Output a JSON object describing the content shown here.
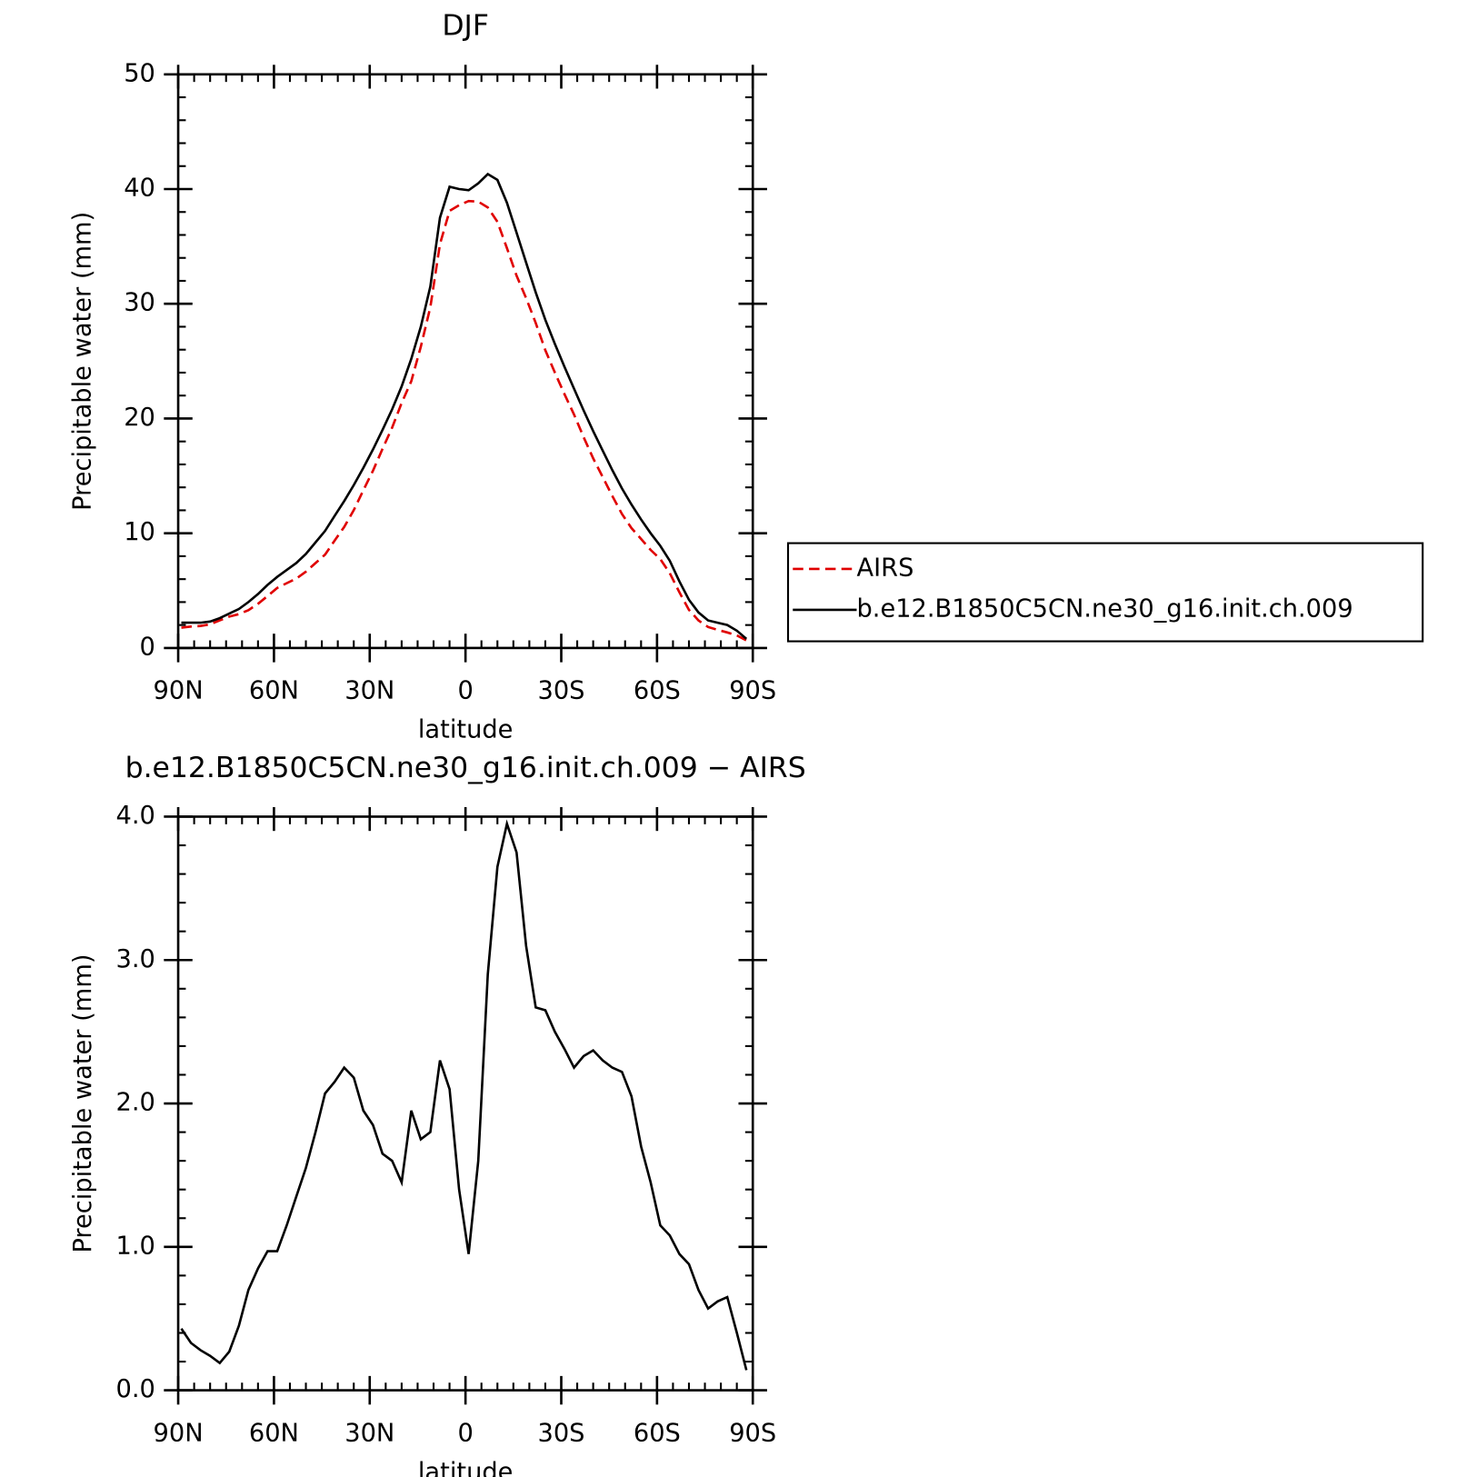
{
  "chart_data": [
    {
      "type": "line",
      "title": "DJF",
      "xlabel": "latitude",
      "ylabel": "Precipitable water (mm)",
      "x": [
        89,
        86,
        83,
        80,
        77,
        74,
        71,
        68,
        65,
        62,
        59,
        56,
        53,
        50,
        47,
        44,
        41,
        38,
        35,
        32,
        29,
        26,
        23,
        20,
        17,
        14,
        11,
        8,
        5,
        2,
        -1,
        -4,
        -7,
        -10,
        -13,
        -16,
        -19,
        -22,
        -25,
        -28,
        -31,
        -34,
        -37,
        -40,
        -43,
        -46,
        -49,
        -52,
        -55,
        -58,
        -61,
        -64,
        -67,
        -70,
        -73,
        -76,
        -79,
        -82,
        -85,
        -88
      ],
      "series": [
        {
          "name": "AIRS",
          "color": "#e00000",
          "dash": true,
          "values": [
            1.77,
            1.87,
            1.92,
            2.06,
            2.41,
            2.73,
            2.95,
            3.3,
            3.85,
            4.53,
            5.23,
            5.65,
            6.05,
            6.65,
            7.4,
            8.13,
            9.35,
            10.55,
            12.02,
            13.75,
            15.45,
            17.35,
            19.2,
            21.35,
            23.25,
            26.25,
            29.7,
            35.2,
            38.1,
            38.6,
            38.95,
            38.9,
            38.4,
            37.15,
            34.85,
            32.45,
            30.5,
            28.33,
            25.95,
            24.0,
            22.12,
            20.35,
            18.37,
            16.53,
            14.9,
            13.25,
            11.68,
            10.45,
            9.5,
            8.55,
            7.75,
            6.52,
            4.85,
            3.32,
            2.4,
            1.83,
            1.58,
            1.35,
            1.1,
            0.66
          ]
        },
        {
          "name": "b.e12.B1850C5CN.ne30_g16.init.ch.009",
          "color": "#000000",
          "dash": false,
          "values": [
            2.2,
            2.2,
            2.2,
            2.3,
            2.6,
            3.0,
            3.4,
            4.0,
            4.7,
            5.5,
            6.2,
            6.8,
            7.4,
            8.2,
            9.2,
            10.2,
            11.5,
            12.8,
            14.2,
            15.7,
            17.3,
            19.0,
            20.8,
            22.8,
            25.2,
            28.0,
            31.5,
            37.5,
            40.2,
            40.0,
            39.9,
            40.5,
            41.3,
            40.8,
            38.8,
            36.2,
            33.6,
            31.0,
            28.6,
            26.5,
            24.5,
            22.6,
            20.7,
            18.9,
            17.2,
            15.5,
            13.9,
            12.5,
            11.2,
            10.0,
            8.9,
            7.6,
            5.8,
            4.2,
            3.1,
            2.4,
            2.2,
            2.0,
            1.5,
            0.8
          ]
        }
      ],
      "xlim": [
        90,
        -90
      ],
      "xticks": [
        {
          "value": 90,
          "label": "90N"
        },
        {
          "value": 60,
          "label": "60N"
        },
        {
          "value": 30,
          "label": "30N"
        },
        0,
        {
          "value": -30,
          "label": "30S"
        },
        {
          "value": -60,
          "label": "60S"
        },
        {
          "value": -90,
          "label": "90S"
        }
      ],
      "ylim": [
        0,
        50
      ],
      "yticks": [
        0,
        10,
        20,
        30,
        40,
        50
      ],
      "legend": "right"
    },
    {
      "type": "line",
      "title": "b.e12.B1850C5CN.ne30_g16.init.ch.009 − AIRS",
      "xlabel": "latitude",
      "ylabel": "Precipitable water (mm)",
      "x": [
        89,
        86,
        83,
        80,
        77,
        74,
        71,
        68,
        65,
        62,
        59,
        56,
        53,
        50,
        47,
        44,
        41,
        38,
        35,
        32,
        29,
        26,
        23,
        20,
        17,
        14,
        11,
        8,
        5,
        2,
        -1,
        -4,
        -7,
        -10,
        -13,
        -16,
        -19,
        -22,
        -25,
        -28,
        -31,
        -34,
        -37,
        -40,
        -43,
        -46,
        -49,
        -52,
        -55,
        -58,
        -61,
        -64,
        -67,
        -70,
        -73,
        -76,
        -79,
        -82,
        -85,
        -88
      ],
      "series": [
        {
          "color": "#000000",
          "dash": false,
          "values": [
            0.43,
            0.33,
            0.28,
            0.24,
            0.19,
            0.27,
            0.45,
            0.7,
            0.85,
            0.97,
            0.97,
            1.15,
            1.35,
            1.55,
            1.8,
            2.07,
            2.15,
            2.25,
            2.18,
            1.95,
            1.85,
            1.65,
            1.6,
            1.45,
            1.95,
            1.75,
            1.8,
            2.3,
            2.1,
            1.4,
            0.95,
            1.6,
            2.9,
            3.65,
            3.95,
            3.75,
            3.1,
            2.67,
            2.65,
            2.5,
            2.38,
            2.25,
            2.33,
            2.37,
            2.3,
            2.25,
            2.22,
            2.05,
            1.7,
            1.45,
            1.15,
            1.08,
            0.95,
            0.88,
            0.7,
            0.57,
            0.62,
            0.65,
            0.4,
            0.14
          ]
        }
      ],
      "xlim": [
        90,
        -90
      ],
      "xticks": [
        {
          "value": 90,
          "label": "90N"
        },
        {
          "value": 60,
          "label": "60N"
        },
        {
          "value": 30,
          "label": "30N"
        },
        0,
        {
          "value": -30,
          "label": "30S"
        },
        {
          "value": -60,
          "label": "60S"
        },
        {
          "value": -90,
          "label": "90S"
        }
      ],
      "ylim": [
        0,
        4
      ],
      "yticks": [
        {
          "value": 0,
          "label": "0.0"
        },
        {
          "value": 1,
          "label": "1.0"
        },
        {
          "value": 2,
          "label": "2.0"
        },
        {
          "value": 3,
          "label": "3.0"
        },
        {
          "value": 4,
          "label": "4.0"
        }
      ]
    }
  ]
}
